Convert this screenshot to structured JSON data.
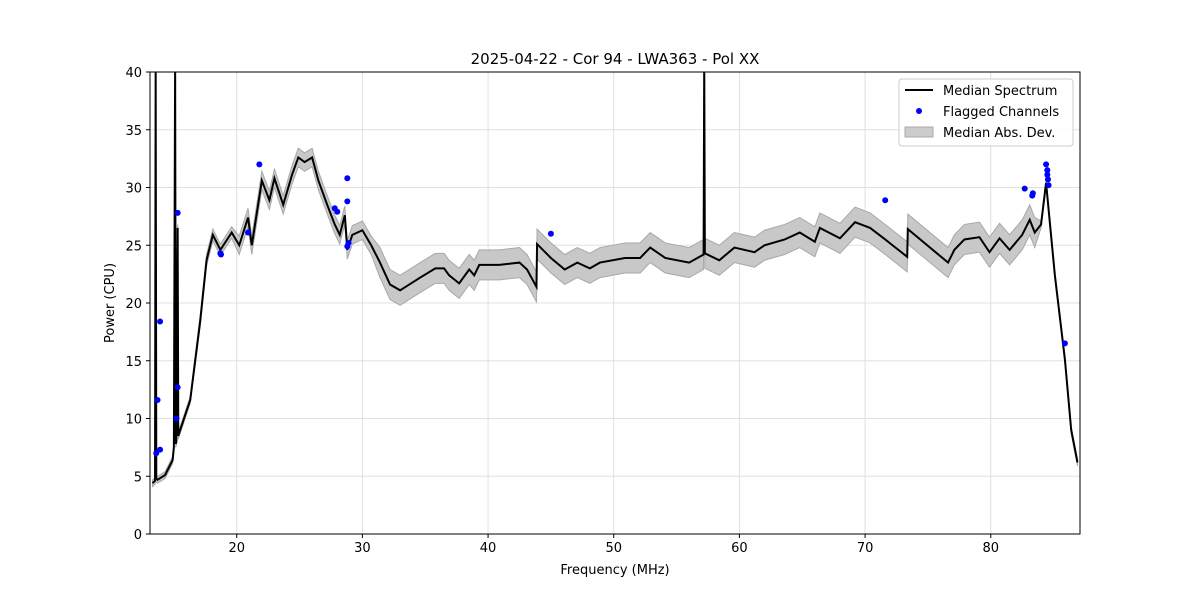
{
  "chart_data": {
    "type": "line",
    "title": "2025-04-22 - Cor 94 - LWA363 - Pol XX",
    "xlabel": "Frequency (MHz)",
    "ylabel": "Power (CPU)",
    "xlim": [
      13.1,
      87.1
    ],
    "ylim": [
      0,
      40
    ],
    "grid": true,
    "legend_position": "top-right",
    "xticks": [
      20,
      30,
      40,
      50,
      60,
      70,
      80
    ],
    "yticks": [
      0,
      5,
      10,
      15,
      20,
      25,
      30,
      35,
      40
    ],
    "legend": [
      "Median Spectrum",
      "Flagged Channels",
      "Median Abs. Dev."
    ],
    "colors": {
      "median": "#000000",
      "flagged": "#0000ff",
      "mad": "#bfbfbf"
    },
    "median_spectrum": {
      "x": [
        13.3,
        13.5,
        13.55,
        13.6,
        13.7,
        14.3,
        14.9,
        15.0,
        15.1,
        15.15,
        15.2,
        15.3,
        15.35,
        15.5,
        16.3,
        17.1,
        17.6,
        18.1,
        18.7,
        19.6,
        20.2,
        20.9,
        21.2,
        22.0,
        22.6,
        23.0,
        23.7,
        24.4,
        24.9,
        25.4,
        26.0,
        26.5,
        27.2,
        27.8,
        28.2,
        28.6,
        28.8,
        29.2,
        30.0,
        30.7,
        31.4,
        32.2,
        33.0,
        34.6,
        35.8,
        36.5,
        36.9,
        37.7,
        38.5,
        38.9,
        39.3,
        40.9,
        42.5,
        43.1,
        43.85,
        43.9,
        45.0,
        46.1,
        47.1,
        48.1,
        48.9,
        50.9,
        52.1,
        52.9,
        54.1,
        56.0,
        57.15,
        57.2,
        57.25,
        58.4,
        59.6,
        61.2,
        62.0,
        63.6,
        64.8,
        66.0,
        66.4,
        68.0,
        69.2,
        70.4,
        71.6,
        73.35,
        73.4,
        76.6,
        77.1,
        77.9,
        79.1,
        79.9,
        80.7,
        81.5,
        82.5,
        83.1,
        83.5,
        84.0,
        84.4,
        85.1,
        85.9,
        86.4,
        86.9
      ],
      "y": [
        4.4,
        4.6,
        45,
        4.8,
        4.7,
        5.1,
        6.4,
        7.5,
        45,
        7.8,
        8.0,
        26.5,
        8.5,
        9.0,
        11.6,
        18.5,
        23.7,
        25.9,
        24.6,
        26.1,
        25.0,
        27.4,
        25.0,
        30.6,
        28.9,
        30.8,
        28.5,
        31.1,
        32.6,
        32.2,
        32.6,
        30.6,
        28.5,
        26.8,
        25.9,
        27.6,
        24.6,
        25.9,
        26.3,
        25.0,
        23.5,
        21.6,
        21.1,
        22.2,
        23.0,
        23.0,
        22.4,
        21.7,
        22.9,
        22.4,
        23.3,
        23.3,
        23.5,
        22.9,
        21.4,
        25.1,
        23.9,
        22.9,
        23.5,
        23.0,
        23.5,
        23.9,
        23.9,
        24.8,
        23.9,
        23.5,
        24.2,
        45,
        24.3,
        23.7,
        24.8,
        24.4,
        25.0,
        25.5,
        26.1,
        25.3,
        26.5,
        25.6,
        27.0,
        26.5,
        25.5,
        24.0,
        26.4,
        23.5,
        24.6,
        25.5,
        25.7,
        24.4,
        25.6,
        24.6,
        25.9,
        27.2,
        26.1,
        26.8,
        30.4,
        22.4,
        15.1,
        9.0,
        6.2
      ]
    },
    "flagged_channels": {
      "x": [
        13.6,
        13.7,
        13.9,
        13.9,
        15.2,
        15.3,
        15.3,
        18.7,
        18.75,
        20.9,
        21.8,
        27.8,
        28.0,
        28.8,
        28.8,
        28.8,
        28.9,
        45.0,
        71.6,
        82.7,
        83.3,
        83.35,
        84.4,
        84.5,
        84.5,
        84.55,
        84.6,
        85.9
      ],
      "y": [
        7.0,
        11.6,
        18.4,
        7.3,
        10.0,
        27.8,
        12.7,
        24.3,
        24.2,
        26.1,
        32.0,
        28.2,
        27.9,
        30.8,
        28.8,
        24.9,
        25.2,
        26.0,
        28.9,
        29.9,
        29.3,
        29.5,
        32.0,
        31.5,
        31.1,
        30.7,
        30.2,
        16.5
      ]
    }
  }
}
